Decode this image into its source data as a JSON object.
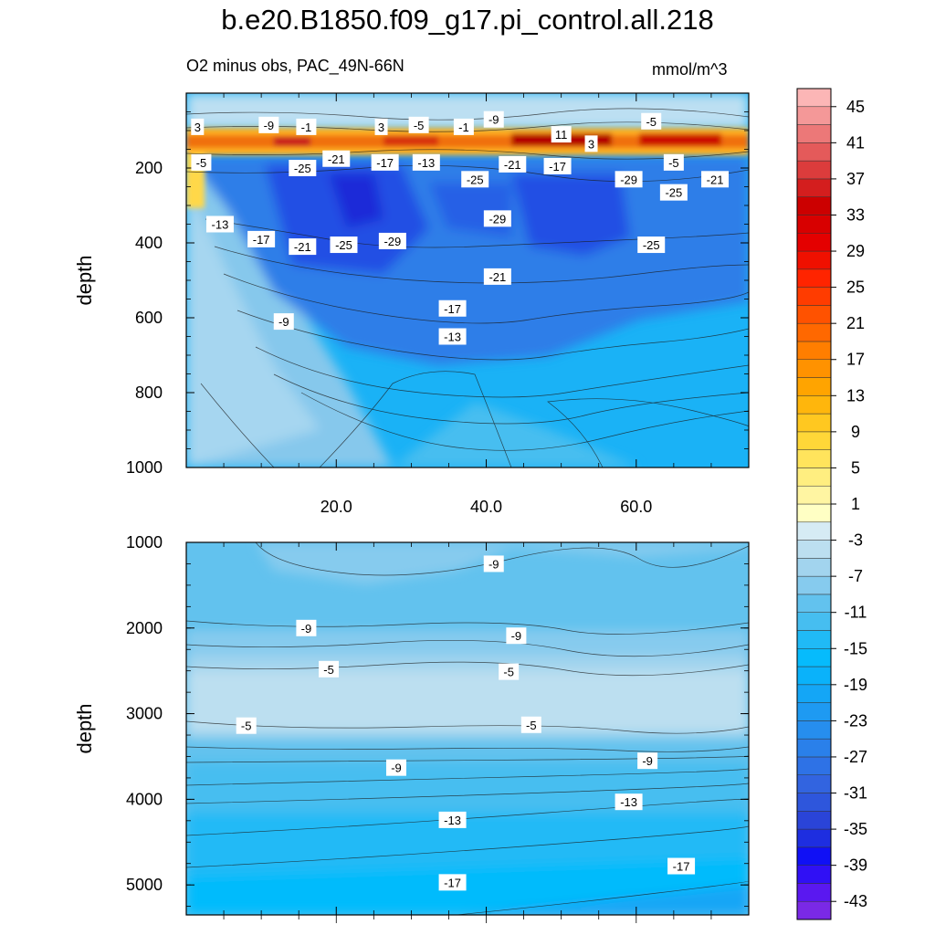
{
  "title": "b.e20.B1850.f09_g17.pi_control.all.218",
  "subtitle": "O2 minus obs, PAC_49N-66N",
  "units": "mmol/m^3",
  "chart_data": [
    {
      "type": "heatmap",
      "panel": "upper",
      "ylabel": "depth",
      "xlabel": "",
      "xlim": [
        0,
        75
      ],
      "ylim": [
        1000,
        0
      ],
      "x_ticks": [
        "20.0",
        "40.0",
        "60.0"
      ],
      "x_tick_values": [
        20,
        40,
        60
      ],
      "y_ticks": [
        "200",
        "400",
        "600",
        "800",
        "1000"
      ],
      "y_tick_values": [
        200,
        400,
        600,
        800,
        1000
      ],
      "contour_labels": [
        {
          "text": "3",
          "x": 1.5,
          "y": 90
        },
        {
          "text": "-9",
          "x": 11,
          "y": 85
        },
        {
          "text": "-1",
          "x": 16,
          "y": 90
        },
        {
          "text": "3",
          "x": 26,
          "y": 90
        },
        {
          "text": "-5",
          "x": 31,
          "y": 85
        },
        {
          "text": "-1",
          "x": 37,
          "y": 90
        },
        {
          "text": "-9",
          "x": 41,
          "y": 70
        },
        {
          "text": "11",
          "x": 50,
          "y": 110
        },
        {
          "text": "3",
          "x": 54,
          "y": 135
        },
        {
          "text": "-5",
          "x": 62,
          "y": 75
        },
        {
          "text": "-5",
          "x": 2,
          "y": 185
        },
        {
          "text": "-25",
          "x": 15.5,
          "y": 200
        },
        {
          "text": "-21",
          "x": 20,
          "y": 175
        },
        {
          "text": "-17",
          "x": 26.5,
          "y": 185
        },
        {
          "text": "-13",
          "x": 32,
          "y": 185
        },
        {
          "text": "-25",
          "x": 38.5,
          "y": 230
        },
        {
          "text": "-21",
          "x": 43.5,
          "y": 190
        },
        {
          "text": "-17",
          "x": 49.5,
          "y": 195
        },
        {
          "text": "-29",
          "x": 59,
          "y": 230
        },
        {
          "text": "-5",
          "x": 65,
          "y": 185
        },
        {
          "text": "-25",
          "x": 65,
          "y": 265
        },
        {
          "text": "-21",
          "x": 70.5,
          "y": 230
        },
        {
          "text": "-13",
          "x": 4.5,
          "y": 350
        },
        {
          "text": "-17",
          "x": 10,
          "y": 390
        },
        {
          "text": "-21",
          "x": 15.5,
          "y": 410
        },
        {
          "text": "-25",
          "x": 21,
          "y": 405
        },
        {
          "text": "-29",
          "x": 27.5,
          "y": 395
        },
        {
          "text": "-29",
          "x": 41.5,
          "y": 335
        },
        {
          "text": "-25",
          "x": 62,
          "y": 405
        },
        {
          "text": "-21",
          "x": 41.5,
          "y": 490
        },
        {
          "text": "-17",
          "x": 35.5,
          "y": 575
        },
        {
          "text": "-9",
          "x": 13,
          "y": 610
        },
        {
          "text": "-13",
          "x": 35.5,
          "y": 650
        }
      ]
    },
    {
      "type": "heatmap",
      "panel": "lower",
      "ylabel": "depth",
      "xlabel": "",
      "xlim": [
        0,
        75
      ],
      "ylim": [
        5350,
        1000
      ],
      "y_ticks": [
        "1000",
        "2000",
        "3000",
        "4000",
        "5000"
      ],
      "y_tick_values": [
        1000,
        2000,
        3000,
        4000,
        5000
      ],
      "contour_labels": [
        {
          "text": "-9",
          "x": 41,
          "y": 1250
        },
        {
          "text": "-9",
          "x": 16,
          "y": 2000
        },
        {
          "text": "-9",
          "x": 44,
          "y": 2090
        },
        {
          "text": "-5",
          "x": 19,
          "y": 2480
        },
        {
          "text": "-5",
          "x": 43,
          "y": 2510
        },
        {
          "text": "-5",
          "x": 8,
          "y": 3140
        },
        {
          "text": "-5",
          "x": 46,
          "y": 3130
        },
        {
          "text": "-9",
          "x": 28,
          "y": 3630
        },
        {
          "text": "-9",
          "x": 61.5,
          "y": 3550
        },
        {
          "text": "-13",
          "x": 35.5,
          "y": 4240
        },
        {
          "text": "-13",
          "x": 59,
          "y": 4030
        },
        {
          "text": "-17",
          "x": 35.5,
          "y": 4970
        },
        {
          "text": "-17",
          "x": 66,
          "y": 4780
        }
      ]
    },
    {
      "type": "colorbar",
      "levels": [
        -45,
        -43,
        -41,
        -39,
        -37,
        -35,
        -33,
        -31,
        -29,
        -27,
        -25,
        -23,
        -21,
        -19,
        -17,
        -15,
        -13,
        -11,
        -9,
        -7,
        -5,
        -3,
        -1,
        1,
        3,
        5,
        7,
        9,
        11,
        13,
        15,
        17,
        19,
        21,
        23,
        25,
        27,
        29,
        31,
        33,
        35,
        37,
        39,
        41,
        43,
        45,
        47
      ],
      "tick_labels": [
        "45",
        "41",
        "37",
        "33",
        "29",
        "25",
        "21",
        "17",
        "13",
        "9",
        "5",
        "1",
        "-3",
        "-7",
        "-11",
        "-15",
        "-19",
        "-23",
        "-27",
        "-31",
        "-35",
        "-39",
        "-43"
      ],
      "colors": [
        "#7a29e6",
        "#5a18f0",
        "#3010f5",
        "#1010f5",
        "#1e2ee0",
        "#2a44d8",
        "#2e56dc",
        "#3264e0",
        "#2e72e6",
        "#2a80ea",
        "#268eee",
        "#1e9af2",
        "#14a6f6",
        "#0ab2fa",
        "#06bbfc",
        "#20baf6",
        "#46bef0",
        "#62c2ee",
        "#86cbee",
        "#a2d4ee",
        "#bcdff0",
        "#d6ebf4",
        "#ffffc4",
        "#fff5a2",
        "#ffee80",
        "#ffe45c",
        "#ffd738",
        "#ffc820",
        "#ffb60c",
        "#ffa400",
        "#ff9200",
        "#ff7e00",
        "#ff6800",
        "#ff5200",
        "#ff3c00",
        "#ff2400",
        "#f01000",
        "#e40000",
        "#d80000",
        "#cc0000",
        "#d41e1e",
        "#dc3c3c",
        "#e45a5a",
        "#ec7878",
        "#f49898",
        "#fcb6b6"
      ]
    }
  ]
}
